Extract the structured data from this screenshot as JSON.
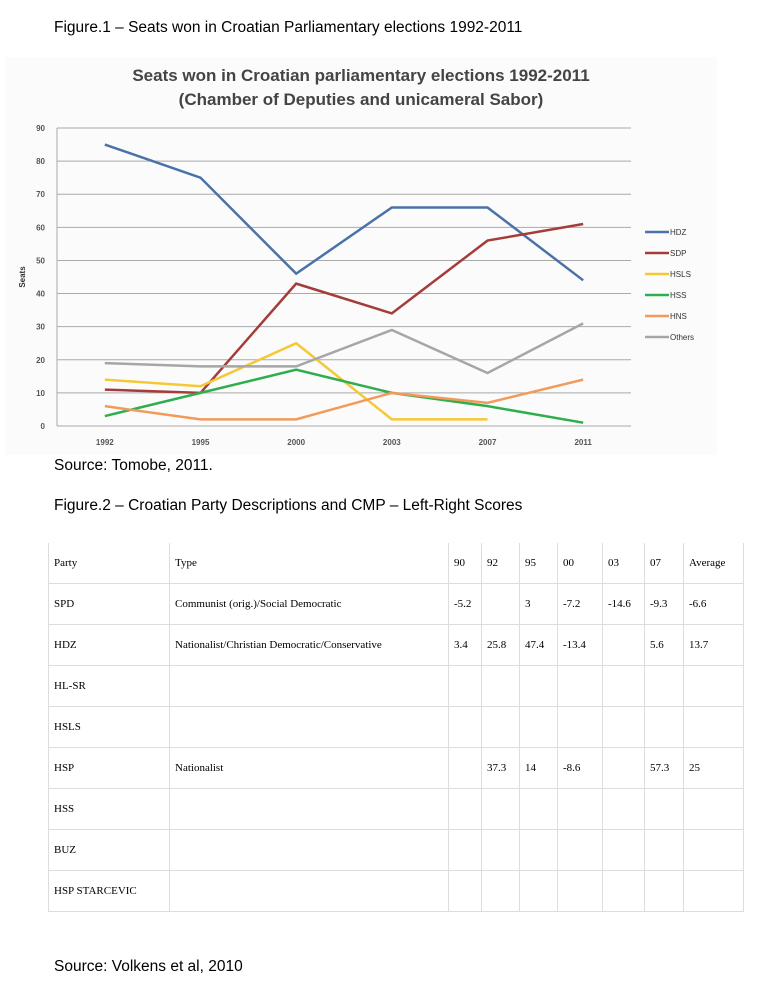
{
  "figure1_caption": "Figure.1 – Seats won in Croatian Parliamentary elections 1992-2011",
  "figure1_source": "Source: Tomobe, 2011.",
  "figure2_caption": "Figure.2 – Croatian Party Descriptions and CMP – Left-Right Scores",
  "figure2_source": "Source:  Volkens et al, 2010",
  "chart_data": {
    "type": "line",
    "title": "Seats won in Croatian parliamentary elections 1992-2011",
    "subtitle": "(Chamber of Deputies and unicameral Sabor)",
    "xlabel": "",
    "ylabel": "Seats",
    "ylim": [
      0,
      90
    ],
    "yticks": [
      0,
      10,
      20,
      30,
      40,
      50,
      60,
      70,
      80,
      90
    ],
    "categories": [
      "1992",
      "1995",
      "2000",
      "2003",
      "2007",
      "2011"
    ],
    "grid": true,
    "legend": "right",
    "series": [
      {
        "name": "HDZ",
        "color": "#4a72a8",
        "values": [
          85,
          75,
          46,
          66,
          66,
          44
        ]
      },
      {
        "name": "SDP",
        "color": "#a43d3a",
        "values": [
          11,
          10,
          43,
          34,
          56,
          61
        ]
      },
      {
        "name": "HSLS",
        "color": "#f5c835",
        "values": [
          14,
          12,
          25,
          2,
          2,
          null
        ]
      },
      {
        "name": "HSS",
        "color": "#2fae4e",
        "values": [
          3,
          10,
          17,
          10,
          6,
          1
        ]
      },
      {
        "name": "HNS",
        "color": "#f29a5a",
        "values": [
          6,
          2,
          2,
          10,
          7,
          14
        ]
      },
      {
        "name": "Others",
        "color": "#a6a6a6",
        "values": [
          19,
          18,
          18,
          29,
          16,
          31
        ]
      }
    ]
  },
  "table": {
    "headers": [
      "Party",
      "Type",
      "90",
      "92",
      "95",
      "00",
      "03",
      "07",
      "Average"
    ],
    "rows": [
      [
        "SPD",
        "Communist (orig.)/Social Democratic",
        "-5.2",
        "",
        "3",
        "-7.2",
        "-14.6",
        "-9.3",
        "-6.6"
      ],
      [
        "HDZ",
        "Nationalist/Christian Democratic/Conservative",
        "3.4",
        "25.8",
        "47.4",
        "-13.4",
        "",
        "5.6",
        "13.7"
      ],
      [
        "HL-SR",
        "",
        "",
        "",
        "",
        "",
        "",
        "",
        ""
      ],
      [
        "HSLS",
        "",
        "",
        "",
        "",
        "",
        "",
        "",
        ""
      ],
      [
        "HSP",
        "Nationalist",
        "",
        "37.3",
        "14",
        "-8.6",
        "",
        "57.3",
        "25"
      ],
      [
        "HSS",
        "",
        "",
        "",
        "",
        "",
        "",
        "",
        ""
      ],
      [
        "BUZ",
        "",
        "",
        "",
        "",
        "",
        "",
        "",
        ""
      ],
      [
        "HSP STARCEVIC",
        "",
        "",
        "",
        "",
        "",
        "",
        "",
        ""
      ]
    ]
  }
}
